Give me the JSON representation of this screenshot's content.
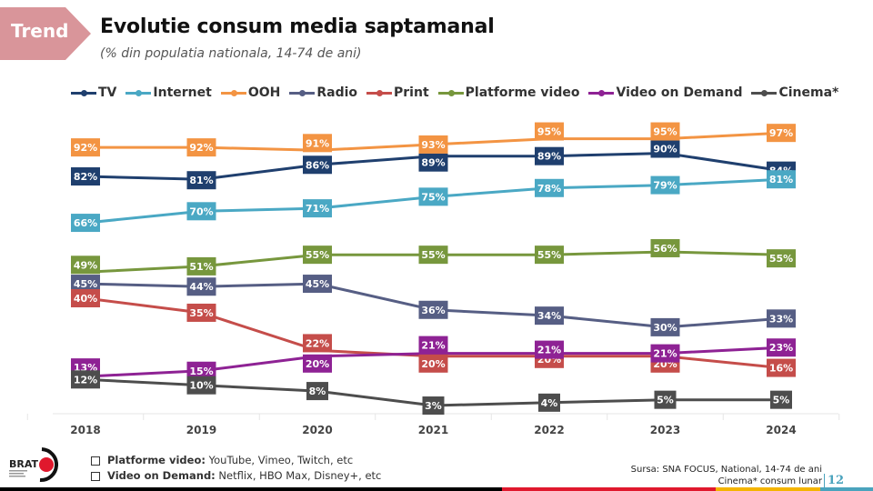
{
  "header": {
    "tag": "Trend",
    "title": "Evolutie consum media saptamanal",
    "subtitle": "(% din populatia nationala, 14-74 de ani)"
  },
  "chart_data": {
    "type": "line",
    "title": "Evolutie consum media saptamanal",
    "subtitle": "(% din populatia nationala, 14-74 de ani)",
    "xlabel": "",
    "ylabel": "",
    "x": [
      "2018",
      "2019",
      "2020",
      "2021",
      "2022",
      "2023",
      "2024"
    ],
    "ylim": [
      0,
      100
    ],
    "grid": "vertical-light",
    "legend": "top",
    "value_suffix": "%",
    "series": [
      {
        "name": "TV",
        "color": "#1f3f6e",
        "values": [
          82,
          81,
          86,
          89,
          89,
          90,
          84
        ]
      },
      {
        "name": "Internet",
        "color": "#4aa8c4",
        "values": [
          66,
          70,
          71,
          75,
          78,
          79,
          81
        ]
      },
      {
        "name": "OOH",
        "color": "#f39443",
        "values": [
          92,
          92,
          91,
          93,
          95,
          95,
          97
        ]
      },
      {
        "name": "Radio",
        "color": "#565e84",
        "values": [
          45,
          44,
          45,
          36,
          34,
          30,
          33
        ]
      },
      {
        "name": "Print",
        "color": "#c54d4a",
        "values": [
          40,
          35,
          22,
          20,
          20,
          20,
          16
        ]
      },
      {
        "name": "Platforme video",
        "color": "#77973d",
        "values": [
          49,
          51,
          55,
          55,
          55,
          56,
          55
        ]
      },
      {
        "name": "Video on Demand",
        "color": "#8e2294",
        "values": [
          13,
          15,
          20,
          21,
          21,
          21,
          23
        ]
      },
      {
        "name": "Cinema*",
        "color": "#4d4d4d",
        "values": [
          12,
          10,
          8,
          3,
          4,
          5,
          5
        ]
      }
    ]
  },
  "notes": [
    {
      "label": "Platforme video:",
      "text": " YouTube, Vimeo, Twitch, etc"
    },
    {
      "label": "Video on Demand:",
      "text": " Netflix, HBO Max, Disney+, etc"
    }
  ],
  "footer": {
    "source": "Sursa: SNA FOCUS, National, 14-74 de ani",
    "cinema_note": "Cinema* consum lunar",
    "page_number": "12",
    "logo_text": "BRAT"
  },
  "colors": {
    "tag_bg": "#d9959a",
    "bar_black": "#000000",
    "bar_red": "#e0182d",
    "bar_yellow": "#f4b400",
    "bar_teal": "#4aa3bd"
  }
}
